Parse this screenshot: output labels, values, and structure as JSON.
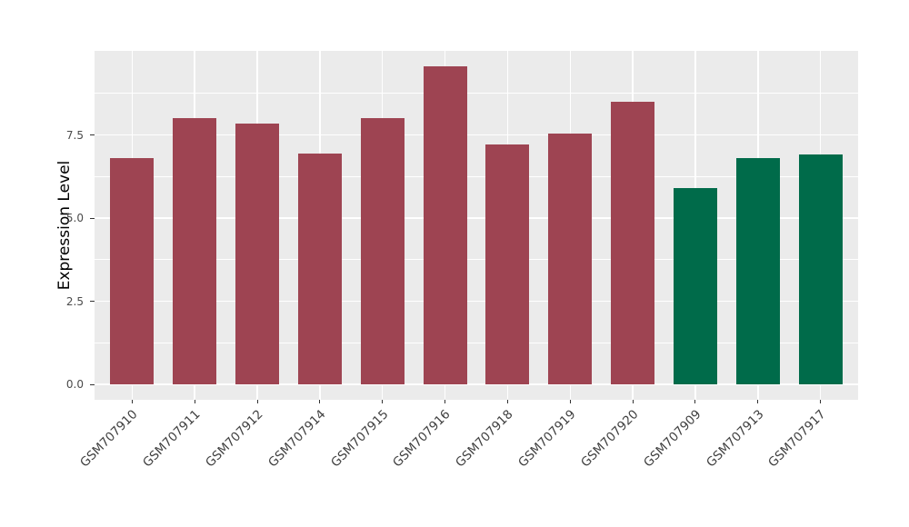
{
  "chart_data": {
    "type": "bar",
    "title": "",
    "xlabel": "",
    "ylabel": "Expression Level",
    "categories": [
      "GSM707910",
      "GSM707911",
      "GSM707912",
      "GSM707914",
      "GSM707915",
      "GSM707916",
      "GSM707918",
      "GSM707919",
      "GSM707920",
      "GSM707909",
      "GSM707913",
      "GSM707917"
    ],
    "values": [
      6.8,
      8.0,
      7.85,
      6.95,
      8.0,
      9.55,
      7.2,
      7.55,
      8.5,
      5.9,
      6.8,
      6.9
    ],
    "bar_colors": [
      "#9E4452",
      "#9E4452",
      "#9E4452",
      "#9E4452",
      "#9E4452",
      "#9E4452",
      "#9E4452",
      "#9E4452",
      "#9E4452",
      "#006B4A",
      "#006B4A",
      "#006B4A"
    ],
    "groups": [
      {
        "color": "#9E4452",
        "members": [
          "GSM707910",
          "GSM707911",
          "GSM707912",
          "GSM707914",
          "GSM707915",
          "GSM707916",
          "GSM707918",
          "GSM707919",
          "GSM707920"
        ]
      },
      {
        "color": "#006B4A",
        "members": [
          "GSM707909",
          "GSM707913",
          "GSM707917"
        ]
      }
    ],
    "ylim": [
      0,
      10
    ],
    "yticks": [
      0,
      2.5,
      5,
      7.5
    ],
    "ytick_labels": [
      "0.0",
      "2.5",
      "5.0",
      "7.5"
    ],
    "yticks_minor": [
      1.25,
      3.75,
      6.25,
      8.75
    ],
    "x_tick_rotation_deg": 45,
    "grid": true,
    "legend_position": "none",
    "panel_background": "#EBEBEB",
    "grid_color": "#FFFFFF",
    "background": "#FFFFFF"
  }
}
